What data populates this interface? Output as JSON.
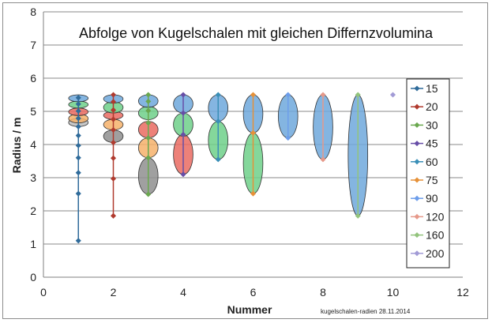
{
  "chart_data": {
    "type": "scatter",
    "title": "Abfolge von Kugelschalen mit gleichen Differnzvolumina",
    "xlabel": "Nummer",
    "ylabel": "Radius / m",
    "xlim": [
      0,
      12
    ],
    "ylim": [
      0,
      8
    ],
    "x_ticks": [
      0,
      2,
      4,
      6,
      8,
      10,
      12
    ],
    "y_ticks": [
      0,
      1,
      2,
      3,
      4,
      5,
      6,
      7,
      8
    ],
    "grid": "horizontal",
    "legend_position": "right",
    "footnote": "kugelschalen-radien  28.11.2014",
    "series": [
      {
        "name": "15",
        "color": "#2f6b9a",
        "x": 1,
        "radii": [
          1.1,
          2.52,
          3.15,
          3.6,
          3.97,
          4.27,
          4.54,
          4.79,
          5.01,
          5.22,
          5.41
        ]
      },
      {
        "name": "20",
        "color": "#b03a2e",
        "x": 2,
        "radii": [
          1.85,
          2.97,
          3.59,
          4.06,
          4.44,
          4.76,
          5.04,
          5.29,
          5.5
        ]
      },
      {
        "name": "30",
        "color": "#6aa84f",
        "x": 3,
        "radii": [
          2.5,
          3.6,
          4.2,
          4.65,
          5.02,
          5.3,
          5.5
        ]
      },
      {
        "name": "45",
        "color": "#674ea7",
        "x": 4,
        "radii": [
          3.1,
          4.3,
          4.95,
          5.5
        ]
      },
      {
        "name": "60",
        "color": "#3a8fb7",
        "x": 5,
        "radii": [
          3.55,
          4.7,
          5.5
        ]
      },
      {
        "name": "75",
        "color": "#e69138",
        "x": 6,
        "radii": [
          2.52,
          4.35,
          5.5
        ]
      },
      {
        "name": "90",
        "color": "#6d9eeb",
        "x": 7,
        "radii": [
          4.2,
          5.5
        ]
      },
      {
        "name": "120",
        "color": "#e6998a",
        "x": 8,
        "radii": [
          3.55,
          5.5
        ]
      },
      {
        "name": "160",
        "color": "#93c47d",
        "x": 9,
        "radii": [
          1.85,
          5.5
        ]
      },
      {
        "name": "200",
        "color": "#a29bd6",
        "x": 10,
        "radii": [
          5.5
        ]
      }
    ],
    "shells": [
      {
        "x": 1,
        "y0": 4.54,
        "y1": 4.79,
        "fill": "#bdbdbd"
      },
      {
        "x": 1,
        "y0": 4.65,
        "y1": 4.92,
        "fill": "#f6b26b"
      },
      {
        "x": 1,
        "y0": 4.87,
        "y1": 5.1,
        "fill": "#ea6b62"
      },
      {
        "x": 1,
        "y0": 5.1,
        "y1": 5.31,
        "fill": "#6fd08a"
      },
      {
        "x": 1,
        "y0": 5.29,
        "y1": 5.5,
        "fill": "#6fa8dc"
      },
      {
        "x": 2,
        "y0": 4.06,
        "y1": 4.44,
        "fill": "#8f8f8f"
      },
      {
        "x": 2,
        "y0": 4.44,
        "y1": 4.76,
        "fill": "#f6b26b"
      },
      {
        "x": 2,
        "y0": 4.76,
        "y1": 5.0,
        "fill": "#ea6b62"
      },
      {
        "x": 2,
        "y0": 4.95,
        "y1": 5.29,
        "fill": "#6fd08a"
      },
      {
        "x": 2,
        "y0": 5.25,
        "y1": 5.5,
        "fill": "#6fa8dc"
      },
      {
        "x": 3,
        "y0": 2.5,
        "y1": 3.6,
        "fill": "#8f8f8f"
      },
      {
        "x": 3,
        "y0": 3.6,
        "y1": 4.2,
        "fill": "#f6b26b"
      },
      {
        "x": 3,
        "y0": 4.2,
        "y1": 4.7,
        "fill": "#ea6b62"
      },
      {
        "x": 3,
        "y0": 4.75,
        "y1": 5.15,
        "fill": "#6fd08a"
      },
      {
        "x": 3,
        "y0": 5.12,
        "y1": 5.5,
        "fill": "#6fa8dc"
      },
      {
        "x": 4,
        "y0": 3.1,
        "y1": 4.3,
        "fill": "#ea6b62"
      },
      {
        "x": 4,
        "y0": 4.25,
        "y1": 4.95,
        "fill": "#6fd08a"
      },
      {
        "x": 4,
        "y0": 4.95,
        "y1": 5.5,
        "fill": "#6fa8dc"
      },
      {
        "x": 5,
        "y0": 3.55,
        "y1": 4.7,
        "fill": "#6fd08a"
      },
      {
        "x": 5,
        "y0": 4.7,
        "y1": 5.5,
        "fill": "#6fa8dc"
      },
      {
        "x": 6,
        "y0": 2.52,
        "y1": 4.35,
        "fill": "#6fd08a"
      },
      {
        "x": 6,
        "y0": 4.35,
        "y1": 5.5,
        "fill": "#6fa8dc"
      },
      {
        "x": 7,
        "y0": 4.2,
        "y1": 5.5,
        "fill": "#6fa8dc"
      },
      {
        "x": 8,
        "y0": 3.55,
        "y1": 5.5,
        "fill": "#6fa8dc"
      },
      {
        "x": 9,
        "y0": 1.85,
        "y1": 5.5,
        "fill": "#6fa8dc"
      }
    ]
  }
}
